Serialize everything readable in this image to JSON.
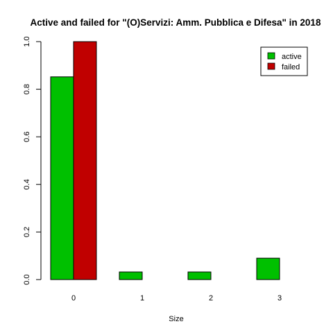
{
  "chart_data": {
    "type": "bar",
    "title": "Active and failed for \"(O)Servizi: Amm. Pubblica e Difesa\" in 2018",
    "xlabel": "Size",
    "ylabel": "",
    "categories": [
      "0",
      "1",
      "2",
      "3"
    ],
    "series": [
      {
        "name": "active",
        "color": "#00c000",
        "values": [
          0.852,
          0.032,
          0.032,
          0.09
        ]
      },
      {
        "name": "failed",
        "color": "#c00000",
        "values": [
          1.0,
          0.0,
          0.0,
          0.0
        ]
      }
    ],
    "ylim": [
      0,
      1
    ],
    "yticks": [
      "0.0",
      "0.2",
      "0.4",
      "0.6",
      "0.8",
      "1.0"
    ],
    "grid": false,
    "legend_position": "top-right",
    "bar_mode": "grouped"
  }
}
